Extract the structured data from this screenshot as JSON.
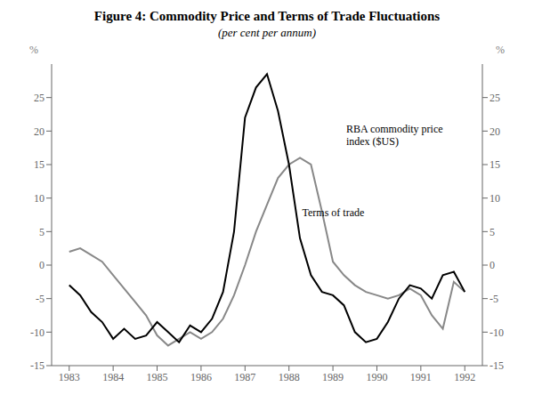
{
  "chart_data": {
    "type": "line",
    "title": "Figure 4: Commodity Price and Terms of Trade Fluctuations",
    "subtitle": "(per cent per annum)",
    "y_label": "%",
    "y2_label": "%",
    "x": [
      1983.0,
      1983.25,
      1983.5,
      1983.75,
      1984.0,
      1984.25,
      1984.5,
      1984.75,
      1985.0,
      1985.25,
      1985.5,
      1985.75,
      1986.0,
      1986.25,
      1986.5,
      1986.75,
      1987.0,
      1987.25,
      1987.5,
      1987.75,
      1988.0,
      1988.25,
      1988.5,
      1988.75,
      1989.0,
      1989.25,
      1989.5,
      1989.75,
      1990.0,
      1990.25,
      1990.5,
      1990.75,
      1991.0,
      1991.25,
      1991.5,
      1991.75,
      1992.0
    ],
    "xlim": [
      1982.6,
      1992.4
    ],
    "xticks": [
      1983,
      1984,
      1985,
      1986,
      1987,
      1988,
      1989,
      1990,
      1991,
      1992
    ],
    "ylim": [
      -15,
      30
    ],
    "yticks": [
      -15,
      -10,
      -5,
      0,
      5,
      10,
      15,
      20,
      25
    ],
    "y2lim": [
      -15,
      30
    ],
    "y2ticks": [
      -15,
      -10,
      -5,
      0,
      5,
      10,
      15,
      20,
      25
    ],
    "series": [
      {
        "name": "Terms of trade",
        "color": "#888888",
        "values": [
          2.0,
          2.5,
          1.5,
          0.5,
          -1.5,
          -3.5,
          -5.5,
          -7.5,
          -10.5,
          -12.0,
          -11.0,
          -10.0,
          -11.0,
          -10.0,
          -8.0,
          -4.5,
          0.0,
          5.0,
          9.0,
          13.0,
          15.0,
          16.0,
          15.0,
          8.0,
          0.5,
          -1.5,
          -3.0,
          -4.0,
          -4.5,
          -5.0,
          -4.5,
          -3.5,
          -4.5,
          -7.5,
          -9.5,
          -2.5,
          -4.0
        ]
      },
      {
        "name": "RBA commodity price\nindex ($US)",
        "color": "#000000",
        "values": [
          -3.0,
          -4.5,
          -7.0,
          -8.5,
          -11.0,
          -9.5,
          -11.0,
          -10.5,
          -8.5,
          -10.0,
          -11.5,
          -9.0,
          -10.0,
          -8.0,
          -4.0,
          5.0,
          22.0,
          26.5,
          28.5,
          23.0,
          15.0,
          4.0,
          -1.5,
          -4.0,
          -4.5,
          -6.0,
          -10.0,
          -11.5,
          -11.0,
          -8.5,
          -5.0,
          -3.0,
          -3.5,
          -5.0,
          -1.5,
          -1.0,
          -4.0
        ]
      }
    ],
    "annotations": [
      {
        "text": "RBA commodity price\nindex ($US)",
        "x": 1989.3,
        "y": 21.0
      },
      {
        "text": "Terms of trade",
        "x": 1988.3,
        "y": 8.5
      }
    ]
  }
}
